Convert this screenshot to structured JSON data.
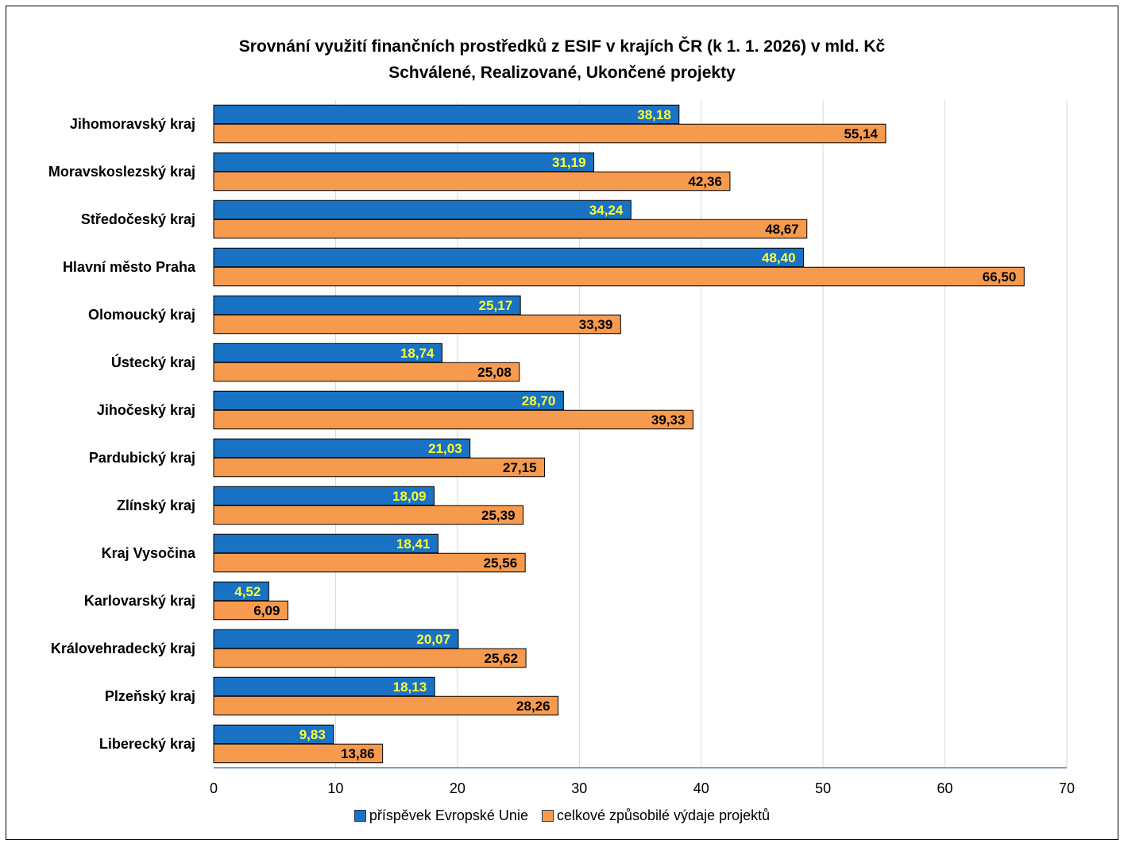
{
  "chart_data": {
    "type": "bar",
    "orientation": "horizontal",
    "title": [
      "Srovnání využití finančních prostředků z ESIF v krajích ČR (k 1. 1. 2026) v mld. Kč",
      "Schválené, Realizované, Ukončené projekty"
    ],
    "categories": [
      "Jihomoravský kraj",
      "Moravskoslezský kraj",
      "Středočeský kraj",
      "Hlavní město Praha",
      "Olomoucký kraj",
      "Ústecký kraj",
      "Jihočeský kraj",
      "Pardubický kraj",
      "Zlínský kraj",
      "Kraj Vysočina",
      "Karlovarský kraj",
      "Královehradecký kraj",
      "Plzeňský kraj",
      "Liberecký kraj"
    ],
    "series": [
      {
        "name": "příspěvek Evropské Unie",
        "color": "#1a72c5",
        "label_color": "#ffff33",
        "values": [
          38.18,
          31.19,
          34.24,
          48.4,
          25.17,
          18.74,
          28.7,
          21.03,
          18.09,
          18.41,
          4.52,
          20.07,
          18.13,
          9.83
        ],
        "labels": [
          "38,18",
          "31,19",
          "34,24",
          "48,40",
          "25,17",
          "18,74",
          "28,70",
          "21,03",
          "18,09",
          "18,41",
          "4,52",
          "20,07",
          "18,13",
          "9,83"
        ]
      },
      {
        "name": "celkové způsobilé výdaje projektů",
        "color": "#f69a4e",
        "label_color": "#000000",
        "values": [
          55.14,
          42.36,
          48.67,
          66.5,
          33.39,
          25.08,
          39.33,
          27.15,
          25.39,
          25.56,
          6.09,
          25.62,
          28.26,
          13.86
        ],
        "labels": [
          "55,14",
          "42,36",
          "48,67",
          "66,50",
          "33,39",
          "25,08",
          "39,33",
          "27,15",
          "25,39",
          "25,56",
          "6,09",
          "25,62",
          "28,26",
          "13,86"
        ]
      }
    ],
    "xlim": [
      0,
      70
    ],
    "x_ticks": [
      0,
      10,
      20,
      30,
      40,
      50,
      60,
      70
    ],
    "grid": true,
    "legend_position": "bottom"
  }
}
